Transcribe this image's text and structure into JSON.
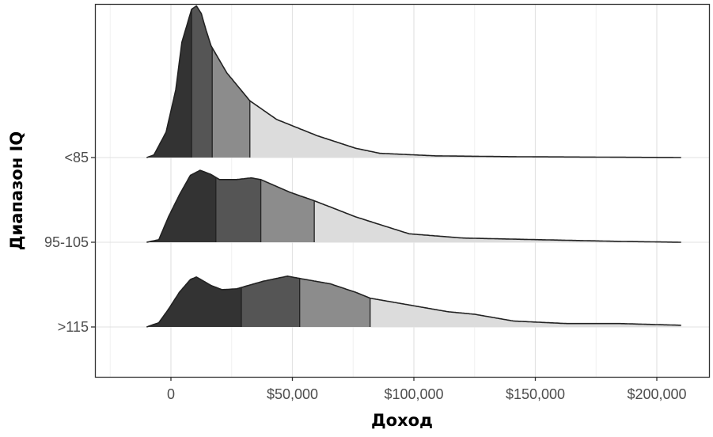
{
  "chart_data": {
    "type": "ridgeline",
    "xlabel": "Доход",
    "ylabel": "Диапазон IQ",
    "xlim": [
      -31000,
      222000
    ],
    "x_ticks": [
      0,
      50000,
      100000,
      150000,
      200000
    ],
    "x_tick_labels": [
      "0",
      "$50,000",
      "$100,000",
      "$150,000",
      "$200,000"
    ],
    "grid": true,
    "legend": "none",
    "quantile_fill_colors": [
      "#333333",
      "#555555",
      "#8c8c8c",
      "#dcdcdc"
    ],
    "line_color": "#222222",
    "series": [
      {
        "name": "<85",
        "quartiles": [
          8500,
          17000,
          32500
        ],
        "density": [
          [
            -10000,
            0
          ],
          [
            -7000,
            0.03
          ],
          [
            -2000,
            0.3
          ],
          [
            2000,
            0.8
          ],
          [
            4500,
            1.36
          ],
          [
            8500,
            1.75
          ],
          [
            10500,
            1.79
          ],
          [
            12500,
            1.7
          ],
          [
            14500,
            1.5
          ],
          [
            16500,
            1.32
          ],
          [
            23000,
            1.0
          ],
          [
            32500,
            0.67
          ],
          [
            43500,
            0.45
          ],
          [
            60000,
            0.26
          ],
          [
            76000,
            0.11
          ],
          [
            86000,
            0.05
          ],
          [
            109000,
            0.02
          ],
          [
            141000,
            0.01
          ],
          [
            210000,
            0
          ]
        ]
      },
      {
        "name": "95-105",
        "quartiles": [
          18500,
          37000,
          59000
        ],
        "density": [
          [
            -10000,
            0
          ],
          [
            -5000,
            0.03
          ],
          [
            -1000,
            0.3
          ],
          [
            3500,
            0.56
          ],
          [
            8000,
            0.79
          ],
          [
            12000,
            0.85
          ],
          [
            16500,
            0.8
          ],
          [
            20000,
            0.74
          ],
          [
            27000,
            0.74
          ],
          [
            33000,
            0.76
          ],
          [
            37000,
            0.74
          ],
          [
            49000,
            0.59
          ],
          [
            59000,
            0.49
          ],
          [
            76000,
            0.3
          ],
          [
            87000,
            0.2
          ],
          [
            98000,
            0.1
          ],
          [
            120000,
            0.05
          ],
          [
            152000,
            0.03
          ],
          [
            185000,
            0.01
          ],
          [
            210000,
            0
          ]
        ]
      },
      {
        "name": ">115",
        "quartiles": [
          29000,
          53000,
          82000
        ],
        "density": [
          [
            -10000,
            0
          ],
          [
            -5000,
            0.05
          ],
          [
            -1000,
            0.21
          ],
          [
            3500,
            0.41
          ],
          [
            8000,
            0.56
          ],
          [
            10500,
            0.59
          ],
          [
            16500,
            0.49
          ],
          [
            21000,
            0.44
          ],
          [
            27000,
            0.45
          ],
          [
            38000,
            0.54
          ],
          [
            48000,
            0.6
          ],
          [
            53500,
            0.57
          ],
          [
            65500,
            0.51
          ],
          [
            76000,
            0.41
          ],
          [
            82000,
            0.34
          ],
          [
            98000,
            0.26
          ],
          [
            114000,
            0.18
          ],
          [
            125000,
            0.15
          ],
          [
            141000,
            0.07
          ],
          [
            163000,
            0.04
          ],
          [
            185000,
            0.04
          ],
          [
            210000,
            0.02
          ]
        ]
      }
    ]
  }
}
